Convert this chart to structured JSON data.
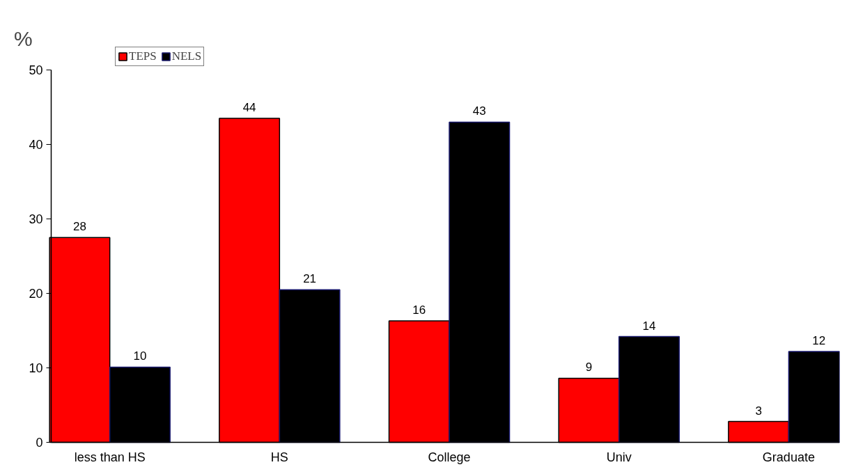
{
  "chart_data": {
    "type": "bar",
    "annotations": [
      "%"
    ],
    "categories": [
      "less than HS",
      "HS",
      "College",
      "Univ",
      "Graduate"
    ],
    "series": [
      {
        "name": "TEPS",
        "color": "#ff0000",
        "values": [
          27.5,
          43.5,
          16.3,
          8.6,
          2.8
        ],
        "value_labels": [
          "28",
          "44",
          "16",
          "9",
          "3"
        ]
      },
      {
        "name": "NELS",
        "color": "#000000",
        "values": [
          10.1,
          20.5,
          43,
          14.2,
          12.2
        ],
        "value_labels": [
          "10",
          "21",
          "43",
          "14",
          "12"
        ]
      }
    ],
    "ylim": [
      0,
      50
    ],
    "yticks": [
      0,
      10,
      20,
      30,
      40,
      50
    ],
    "grid": false,
    "legend": "top left"
  }
}
